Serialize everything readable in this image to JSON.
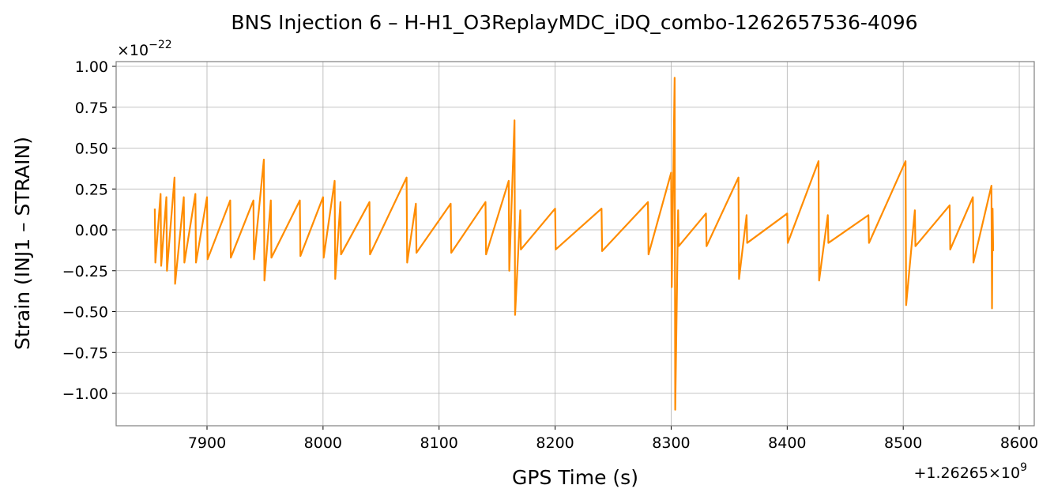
{
  "chart_data": {
    "type": "line",
    "title": "BNS Injection 6 – H-H1_O3ReplayMDC_iDQ_combo-1262657536-4096",
    "x_label": "GPS Time (s)",
    "y_label": "Strain (INJ1 – STRAIN)",
    "y_offset_base": "×10",
    "y_offset_exponent": "−22",
    "x_offset_base": "+1.26265×10",
    "x_offset_exponent": "9",
    "color": "#ff8c00",
    "grid": true,
    "xlim": [
      7821.7,
      8612.9
    ],
    "ylim": [
      -1.198,
      1.029
    ],
    "xticks": [
      7900,
      8000,
      8100,
      8200,
      8300,
      8400,
      8500,
      8600
    ],
    "yticks": [
      {
        "value": 1,
        "label": "1.00"
      },
      {
        "value": 0.75,
        "label": "0.75"
      },
      {
        "value": 0.5,
        "label": "0.50"
      },
      {
        "value": 0.25,
        "label": "0.25"
      },
      {
        "value": 0,
        "label": "0.00"
      },
      {
        "value": -0.25,
        "label": "−0.25"
      },
      {
        "value": -0.5,
        "label": "−0.50"
      },
      {
        "value": -0.75,
        "label": "−0.75"
      },
      {
        "value": -1,
        "label": "−1.00"
      }
    ],
    "x": [
      7855,
      7855.5,
      7860,
      7860.5,
      7865,
      7865.5,
      7872,
      7872.5,
      7880,
      7880.5,
      7890,
      7890.5,
      7900,
      7900.5,
      7920,
      7920.5,
      7940,
      7940.5,
      7949,
      7949.5,
      7955,
      7955.5,
      7980,
      7980.5,
      8000,
      8000.5,
      8010,
      8010.5,
      8015,
      8015.5,
      8040,
      8040.5,
      8072,
      8072.5,
      8080,
      8080.5,
      8110,
      8110.5,
      8140,
      8140.5,
      8160,
      8160.5,
      8165,
      8165.5,
      8170,
      8170.5,
      8200,
      8200.5,
      8240,
      8240.5,
      8280,
      8280.5,
      8300,
      8300.5,
      8303,
      8303.5,
      8306,
      8306.5,
      8330,
      8330.5,
      8358,
      8358.5,
      8365,
      8365.5,
      8400,
      8400.5,
      8427,
      8427.5,
      8435,
      8435.5,
      8470,
      8470.5,
      8502,
      8502.5,
      8510,
      8510.5,
      8540,
      8540.5,
      8560,
      8560.5,
      8576,
      8576.5,
      8577,
      8577.5
    ],
    "values": [
      0.13,
      -0.2,
      0.22,
      -0.22,
      0.2,
      -0.25,
      0.32,
      -0.33,
      0.2,
      -0.2,
      0.22,
      -0.2,
      0.2,
      -0.18,
      0.18,
      -0.17,
      0.18,
      -0.18,
      0.43,
      -0.31,
      0.18,
      -0.17,
      0.18,
      -0.16,
      0.2,
      -0.17,
      0.3,
      -0.3,
      0.17,
      -0.15,
      0.17,
      -0.15,
      0.32,
      -0.2,
      0.16,
      -0.14,
      0.16,
      -0.14,
      0.17,
      -0.15,
      0.3,
      -0.25,
      0.67,
      -0.52,
      0.12,
      -0.12,
      0.13,
      -0.12,
      0.13,
      -0.13,
      0.17,
      -0.15,
      0.35,
      -0.35,
      0.93,
      -1.1,
      0.12,
      -0.1,
      0.1,
      -0.1,
      0.32,
      -0.3,
      0.09,
      -0.08,
      0.1,
      -0.08,
      0.42,
      -0.31,
      0.09,
      -0.08,
      0.09,
      -0.08,
      0.42,
      -0.46,
      0.12,
      -0.1,
      0.15,
      -0.12,
      0.2,
      -0.2,
      0.27,
      -0.48,
      0.13,
      -0.13
    ]
  }
}
